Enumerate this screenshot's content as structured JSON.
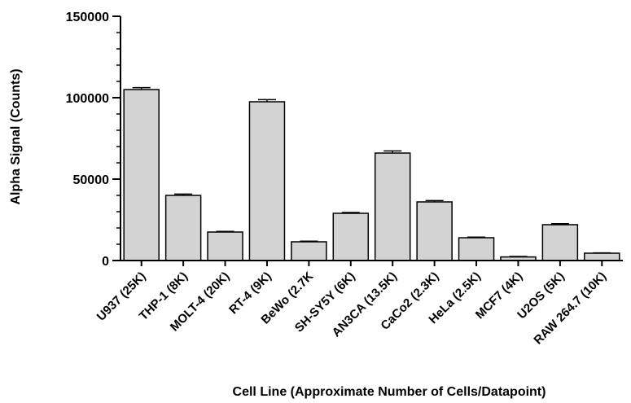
{
  "chart_data": {
    "type": "bar",
    "xlabel": "Cell Line (Approximate Number of Cells/Datapoint)",
    "ylabel": "Alpha Signal (Counts)",
    "ylim": [
      0,
      150000
    ],
    "yticks": [
      0,
      50000,
      100000,
      150000
    ],
    "ytick_labels": [
      "0",
      "50000",
      "100000",
      "150000"
    ],
    "grid": false,
    "legend": "none",
    "bar_color": "#d3d3d3",
    "edge_color": "#000000",
    "categories": [
      "U937 (25K)",
      "THP-1 (8K)",
      "MOLT-4 (20K)",
      "RT-4 (9K)",
      "BeWo (2.7K",
      "SH-SY5Y (6K)",
      "AN3CA (13.5K)",
      "CaCo2 (2.3K)",
      "HeLa (2.5K)",
      "MCF7 (4K)",
      "U2OS (5K)",
      "RAW 264.7 (10K)"
    ],
    "values": [
      105000,
      40000,
      17500,
      97500,
      11500,
      29000,
      66000,
      36000,
      14000,
      2200,
      22000,
      4500
    ],
    "errors": [
      1200,
      800,
      400,
      1300,
      400,
      500,
      1300,
      800,
      400,
      300,
      600,
      200
    ]
  }
}
